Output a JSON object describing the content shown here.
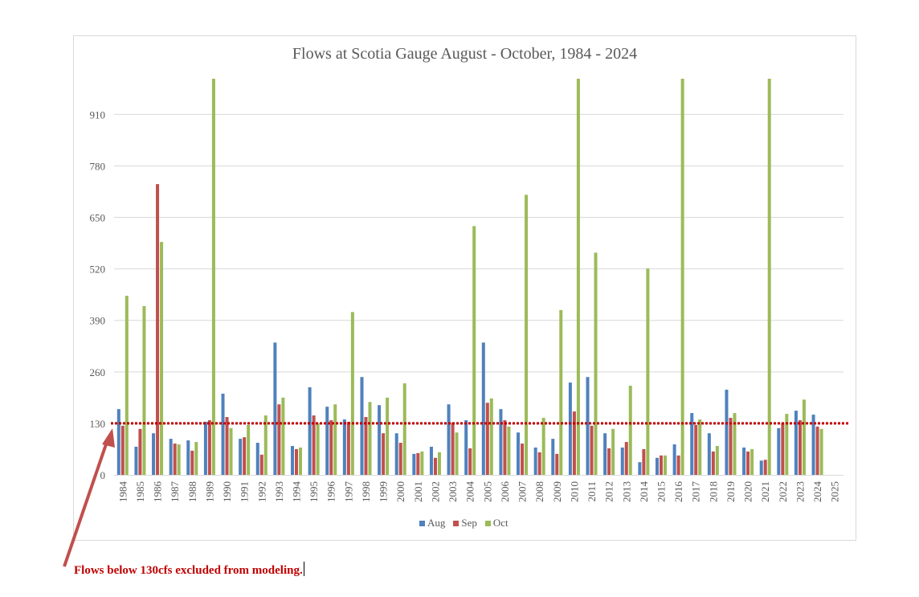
{
  "chart_data": {
    "type": "bar",
    "title": "Flows at Scotia Gauge August - October, 1984 - 2024",
    "xlabel": "",
    "ylabel": "",
    "ylim": [
      0,
      1000
    ],
    "yticks": [
      0,
      130,
      260,
      390,
      520,
      650,
      780,
      910
    ],
    "grid": true,
    "legend_position": "bottom",
    "categories": [
      "1984",
      "1985",
      "1986",
      "1987",
      "1988",
      "1989",
      "1990",
      "1991",
      "1992",
      "1993",
      "1994",
      "1995",
      "1996",
      "1997",
      "1998",
      "1999",
      "2000",
      "2001",
      "2002",
      "2003",
      "2004",
      "2005",
      "2006",
      "2007",
      "2008",
      "2009",
      "2010",
      "2011",
      "2012",
      "2013",
      "2014",
      "2015",
      "2016",
      "2017",
      "2018",
      "2019",
      "2020",
      "2021",
      "2022",
      "2023",
      "2024",
      "2025"
    ],
    "series": [
      {
        "name": "Aug",
        "color": "#4F81BD",
        "values": [
          166,
          71,
          105,
          91,
          87,
          134,
          205,
          91,
          81,
          334,
          73,
          221,
          172,
          140,
          247,
          176,
          105,
          53,
          71,
          178,
          138,
          334,
          166,
          107,
          69,
          91,
          233,
          247,
          105,
          69,
          32,
          43,
          77,
          156,
          105,
          215,
          69,
          36,
          118,
          162,
          152,
          null
        ]
      },
      {
        "name": "Sep",
        "color": "#C0504D",
        "values": [
          124,
          116,
          734,
          79,
          61,
          138,
          146,
          95,
          51,
          178,
          65,
          150,
          138,
          134,
          146,
          105,
          81,
          55,
          43,
          132,
          67,
          182,
          138,
          79,
          57,
          53,
          160,
          124,
          67,
          83,
          65,
          49,
          49,
          126,
          59,
          144,
          59,
          38,
          130,
          138,
          122,
          null
        ]
      },
      {
        "name": "Oct",
        "color": "#9BBB59",
        "values": [
          452,
          426,
          588,
          77,
          83,
          1000,
          118,
          126,
          150,
          195,
          69,
          130,
          178,
          411,
          184,
          195,
          231,
          59,
          57,
          107,
          628,
          193,
          122,
          707,
          144,
          416,
          1000,
          561,
          116,
          225,
          521,
          49,
          1000,
          140,
          73,
          156,
          65,
          1000,
          154,
          190,
          116,
          null
        ]
      }
    ],
    "annotations": [
      {
        "type": "threshold_line",
        "value": 130,
        "style": "dotted",
        "color": "#C00000"
      },
      {
        "type": "text",
        "text": "Flows below 130cfs excluded from modeling.",
        "color": "#C00000"
      },
      {
        "type": "arrow",
        "color": "#C0504D",
        "points_to": "threshold_line"
      }
    ],
    "note": "Oct values of 1000 are clipped at the top of the plot area (axis max)."
  },
  "legend": {
    "items": [
      {
        "label": "Aug",
        "color": "#4F81BD"
      },
      {
        "label": "Sep",
        "color": "#C0504D"
      },
      {
        "label": "Oct",
        "color": "#9BBB59"
      }
    ]
  },
  "annotation_text": "Flows below 130cfs excluded from modeling."
}
